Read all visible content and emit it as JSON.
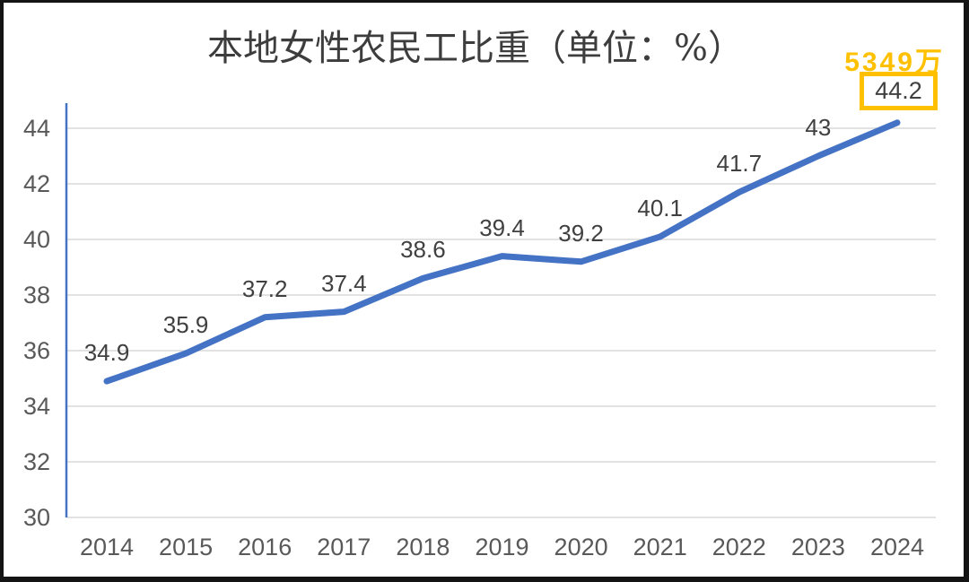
{
  "chart_data": {
    "type": "line",
    "title": "本地女性农民工比重（单位：%）",
    "categories": [
      "2014",
      "2015",
      "2016",
      "2017",
      "2018",
      "2019",
      "2020",
      "2021",
      "2022",
      "2023",
      "2024"
    ],
    "values": [
      34.9,
      35.9,
      37.2,
      37.4,
      38.6,
      39.4,
      39.2,
      40.1,
      41.7,
      43,
      44.2
    ],
    "labels": [
      "34.9",
      "35.9",
      "37.2",
      "37.4",
      "38.6",
      "39.4",
      "39.2",
      "40.1",
      "41.7",
      "43",
      "44.2"
    ],
    "yticks": [
      30,
      32,
      34,
      36,
      38,
      40,
      42,
      44
    ],
    "ylim": [
      30,
      45
    ],
    "xlabel": "",
    "ylabel": "",
    "legend": "none",
    "grid": true,
    "annotation": "5349万",
    "highlighted_value": "44.2",
    "line_color": "#4472C4",
    "accent_color": "#FFC000",
    "gridline_color": "#D9D9D9",
    "tick_color": "#595959",
    "label_color": "#404040"
  }
}
